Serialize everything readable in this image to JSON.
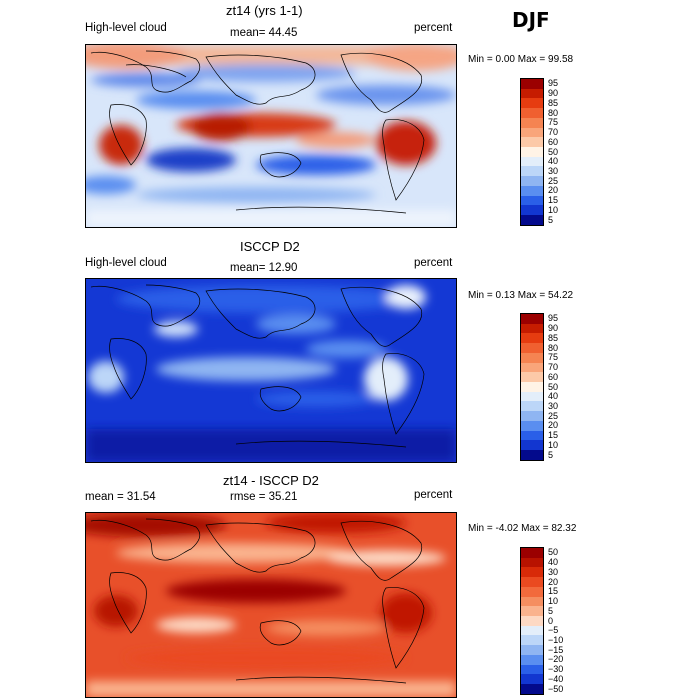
{
  "season": "DJF",
  "panels": [
    {
      "title": "zt14 (yrs 1-1)",
      "left_label": "High-level cloud",
      "mid_label": "mean=   44.45",
      "units": "percent",
      "minmax": "Min =    0.00 Max =   99.58",
      "colorbar": {
        "ticks": [
          "95",
          "90",
          "85",
          "80",
          "75",
          "70",
          "60",
          "50",
          "40",
          "30",
          "25",
          "20",
          "15",
          "10",
          "5"
        ],
        "colors": [
          "#9b0000",
          "#c61c00",
          "#e63c10",
          "#f06030",
          "#f58452",
          "#f9a57a",
          "#fcc9a8",
          "#fff3e6",
          "#e3eefa",
          "#bcd6f8",
          "#8fb5f2",
          "#5a8ef0",
          "#2a5fe8",
          "#1236d0",
          "#030a8c"
        ]
      }
    },
    {
      "title": "ISCCP D2",
      "left_label": "High-level cloud",
      "mid_label": "mean=   12.90",
      "units": "percent",
      "minmax": "Min =    0.13 Max =   54.22",
      "colorbar": {
        "ticks": [
          "95",
          "90",
          "85",
          "80",
          "75",
          "70",
          "60",
          "50",
          "40",
          "30",
          "25",
          "20",
          "15",
          "10",
          "5"
        ],
        "colors": [
          "#9b0000",
          "#c61c00",
          "#e63c10",
          "#f06030",
          "#f58452",
          "#f9a57a",
          "#fcc9a8",
          "#fff3e6",
          "#e3eefa",
          "#bcd6f8",
          "#8fb5f2",
          "#5a8ef0",
          "#2a5fe8",
          "#1236d0",
          "#030a8c"
        ]
      }
    },
    {
      "title": "zt14 - ISCCP D2",
      "left_label": "mean =   31.54",
      "mid_label": "rmse =   35.21",
      "units": "percent",
      "minmax": "Min =  -4.02 Max =   82.32",
      "colorbar": {
        "ticks": [
          "50",
          "40",
          "30",
          "20",
          "15",
          "10",
          "5",
          "0",
          "−5",
          "−10",
          "−15",
          "−20",
          "−30",
          "−40",
          "−50"
        ],
        "colors": [
          "#9b0000",
          "#b81200",
          "#d82a08",
          "#ea4a20",
          "#f26a3c",
          "#f58e60",
          "#fab38e",
          "#fdd9c4",
          "#e3eefa",
          "#bcd6f8",
          "#8fb5f2",
          "#5a8ef0",
          "#2a5fe8",
          "#1236d0",
          "#030a8c"
        ]
      }
    }
  ],
  "chart_data": [
    {
      "type": "heatmap",
      "title": "zt14 (yrs 1-1)",
      "variable": "High-level cloud",
      "units": "percent",
      "mean": 44.45,
      "min": 0.0,
      "max": 99.58,
      "levels": [
        5,
        10,
        15,
        20,
        25,
        30,
        40,
        50,
        60,
        70,
        75,
        80,
        85,
        90,
        95
      ]
    },
    {
      "type": "heatmap",
      "title": "ISCCP D2",
      "variable": "High-level cloud",
      "units": "percent",
      "mean": 12.9,
      "min": 0.13,
      "max": 54.22,
      "levels": [
        5,
        10,
        15,
        20,
        25,
        30,
        40,
        50,
        60,
        70,
        75,
        80,
        85,
        90,
        95
      ]
    },
    {
      "type": "heatmap",
      "title": "zt14 - ISCCP D2",
      "units": "percent",
      "mean": 31.54,
      "rmse": 35.21,
      "min": -4.02,
      "max": 82.32,
      "levels": [
        -50,
        -40,
        -30,
        -20,
        -15,
        -10,
        -5,
        0,
        5,
        10,
        15,
        20,
        30,
        40,
        50
      ]
    }
  ]
}
